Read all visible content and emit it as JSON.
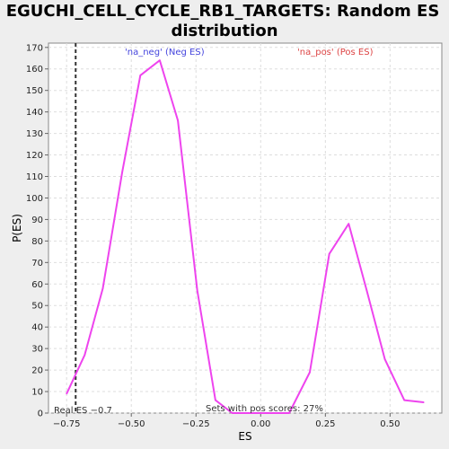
{
  "chart_data": {
    "type": "line",
    "title_line1": "EGUCHI_CELL_CYCLE_RB1_TARGETS: Random ES",
    "title_line2": "distribution",
    "xlabel": "ES",
    "ylabel": "P(ES)",
    "xlim": [
      -0.82,
      0.7
    ],
    "ylim": [
      0,
      172
    ],
    "x_ticks": [
      -0.75,
      -0.5,
      -0.25,
      0.0,
      0.25,
      0.5
    ],
    "x_tick_labels": [
      "−0.75",
      "−0.50",
      "−0.25",
      "0.00",
      "0.25",
      "0.50"
    ],
    "y_ticks": [
      0,
      10,
      20,
      30,
      40,
      50,
      60,
      70,
      80,
      90,
      100,
      110,
      120,
      130,
      140,
      150,
      160,
      170
    ],
    "grid": true,
    "series": [
      {
        "color": "#ee44ee",
        "points": [
          [
            -0.75,
            9
          ],
          [
            -0.68,
            27
          ],
          [
            -0.61,
            58
          ],
          [
            -0.535,
            112
          ],
          [
            -0.465,
            157
          ],
          [
            -0.39,
            164
          ],
          [
            -0.32,
            136
          ],
          [
            -0.245,
            57
          ],
          [
            -0.175,
            6
          ],
          [
            -0.11,
            0
          ],
          [
            -0.04,
            0
          ],
          [
            0.04,
            0
          ],
          [
            0.11,
            0
          ],
          [
            0.19,
            19
          ],
          [
            0.265,
            74
          ],
          [
            0.34,
            88
          ],
          [
            0.41,
            57
          ],
          [
            0.48,
            25
          ],
          [
            0.555,
            6
          ],
          [
            0.63,
            5
          ]
        ]
      }
    ],
    "vline": {
      "x": -0.715,
      "style": "dashed",
      "color": "#333333"
    },
    "annotations": {
      "neg_label": "'na_neg' (Neg ES)",
      "neg_color": "#4444dd",
      "pos_label": "'na_pos' (Pos ES)",
      "pos_color": "#dd4444",
      "pos_scores_text": "Sets with pos scores: 27%",
      "real_es_text": "Real ES −0.7"
    }
  }
}
